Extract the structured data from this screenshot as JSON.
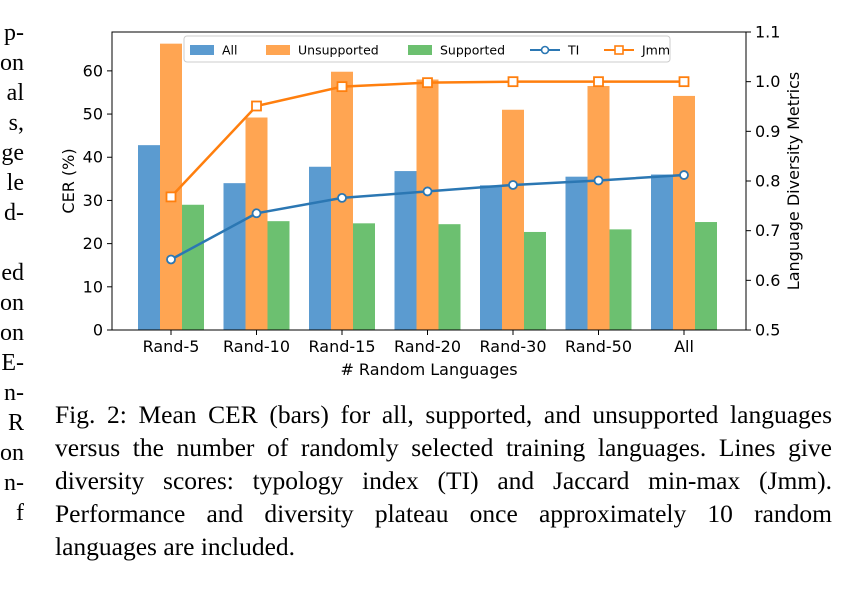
{
  "left_margin_text": [
    "p-",
    "on",
    "al",
    "s,",
    "ge",
    "le",
    "d-",
    "",
    "ed",
    "on",
    "on",
    "E-",
    "n-",
    "R",
    "on",
    "n-",
    "f"
  ],
  "caption": "Fig. 2: Mean CER (bars) for all, supported, and unsupported languages versus the number of randomly selected training languages. Lines give diversity scores: typology index (TI) and Jaccard min-max (Jmm). Performance and diversity plateau once approximately 10 random languages are included.",
  "colors": {
    "all": "#5b9bd0",
    "unsupported": "#ffa552",
    "supported": "#6cc070",
    "ti": "#2b77b3",
    "jmm": "#ff7f0e"
  },
  "chart_data": {
    "type": "bar",
    "categories": [
      "Rand-5",
      "Rand-10",
      "Rand-15",
      "Rand-20",
      "Rand-30",
      "Rand-50",
      "All"
    ],
    "xlabel": "# Random Languages",
    "ylabel": "CER (%)",
    "ylabel_right": "Language Diversity Metrics",
    "ylim": [
      0,
      69
    ],
    "ylim_right": [
      0.5,
      1.1
    ],
    "yticks": [
      0,
      10,
      20,
      30,
      40,
      50,
      60
    ],
    "yticks_right": [
      0.5,
      0.6,
      0.7,
      0.8,
      0.9,
      1.0,
      1.1
    ],
    "series": [
      {
        "name": "All",
        "type": "bar",
        "values": [
          42.8,
          34.0,
          37.8,
          36.8,
          33.5,
          35.5,
          36.0
        ]
      },
      {
        "name": "Unsupported",
        "type": "bar",
        "values": [
          66.3,
          49.2,
          59.8,
          58.0,
          51.0,
          56.5,
          54.2
        ]
      },
      {
        "name": "Supported",
        "type": "bar",
        "values": [
          29.0,
          25.2,
          24.7,
          24.5,
          22.7,
          23.3,
          25.0
        ]
      },
      {
        "name": "TI",
        "type": "line",
        "axis": "right",
        "values": [
          0.642,
          0.735,
          0.766,
          0.779,
          0.792,
          0.801,
          0.812
        ]
      },
      {
        "name": "Jmm",
        "type": "line",
        "axis": "right",
        "values": [
          0.768,
          0.951,
          0.99,
          0.998,
          1.0,
          1.0,
          1.0
        ]
      }
    ],
    "legend": {
      "placement": "top",
      "entries": [
        "All",
        "Unsupported",
        "Supported",
        "TI",
        "Jmm"
      ]
    },
    "grid": false
  }
}
